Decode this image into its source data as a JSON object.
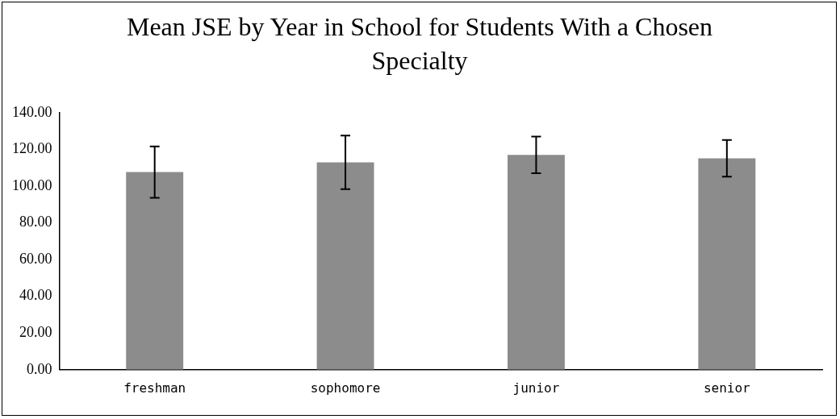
{
  "chart_data": {
    "type": "bar",
    "title": "Mean JSE by Year in School for Students With a Chosen Specialty",
    "categories": [
      "freshman",
      "sophomore",
      "junior",
      "senior"
    ],
    "values": [
      107.7,
      113.0,
      117.1,
      115.2
    ],
    "errors": [
      14,
      14.6,
      10,
      10
    ],
    "color": "#8c8c8c",
    "ylim": [
      0,
      140
    ],
    "yticks": [
      {
        "value": 0,
        "label": "0.00"
      },
      {
        "value": 20,
        "label": "20.00"
      },
      {
        "value": 40,
        "label": "40.00"
      },
      {
        "value": 60,
        "label": "60.00"
      },
      {
        "value": 80,
        "label": "80.00"
      },
      {
        "value": 100,
        "label": "100.00"
      },
      {
        "value": 120,
        "label": "120.00"
      },
      {
        "value": 140,
        "label": "140.00"
      }
    ],
    "grid": false,
    "legend": false
  }
}
